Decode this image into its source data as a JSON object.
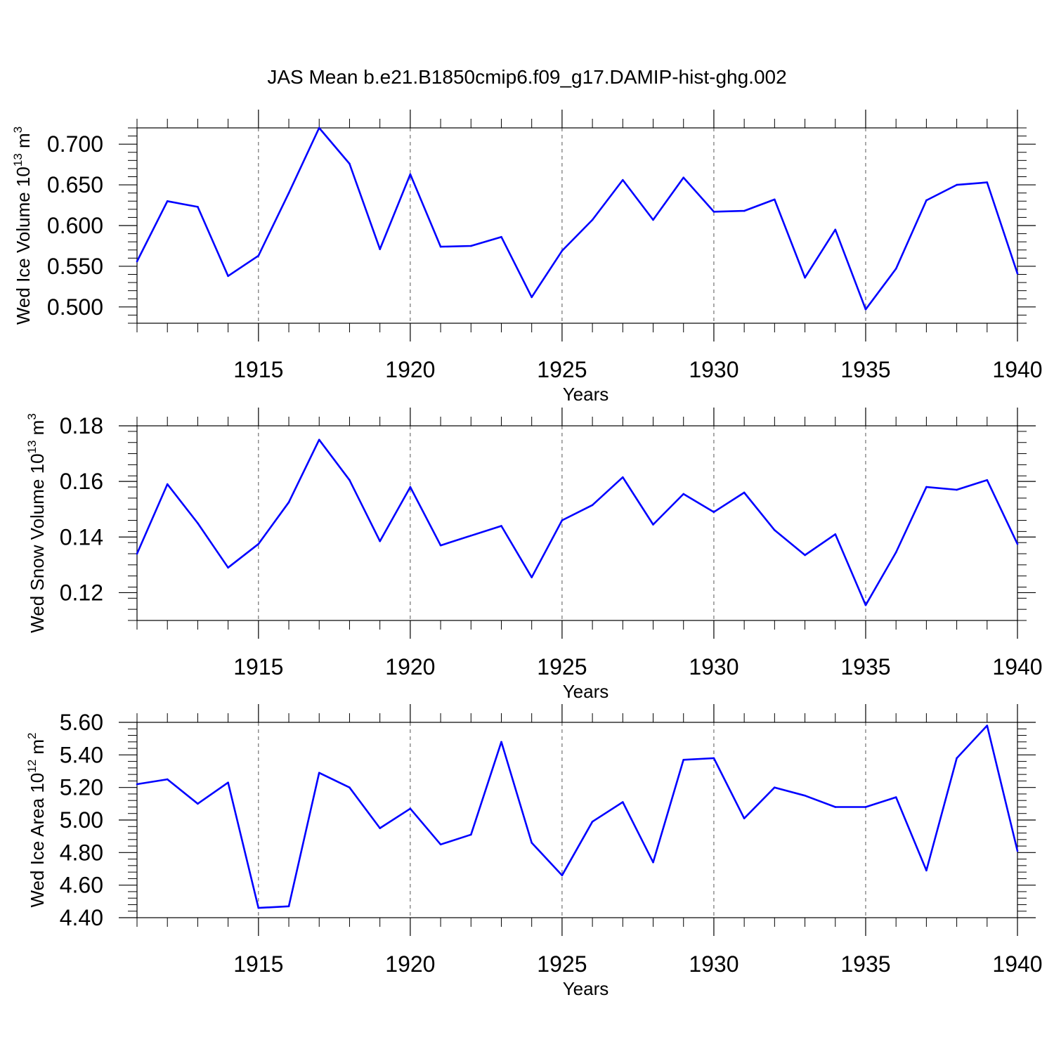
{
  "chart_data": {
    "type": "line",
    "title": "JAS Mean b.e21.B1850cmip6.f09_g17.DAMIP-hist-ghg.002",
    "line_color": "#0000ff",
    "x": [
      1911,
      1912,
      1913,
      1914,
      1915,
      1916,
      1917,
      1918,
      1919,
      1920,
      1921,
      1922,
      1923,
      1924,
      1925,
      1926,
      1927,
      1928,
      1929,
      1930,
      1931,
      1932,
      1933,
      1934,
      1935,
      1936,
      1937,
      1938,
      1939,
      1940
    ],
    "xlim": [
      1911,
      1940
    ],
    "xticks": [
      1915,
      1920,
      1925,
      1930,
      1935,
      1940
    ],
    "xlabel": "Years",
    "grid": "dashed vertical at major x ticks",
    "panels": [
      {
        "ylabel_main": "Wed Ice Volume 10",
        "ylabel_exp": "13",
        "ylabel_unit": " m",
        "ylabel_unit_exp": "3",
        "ylim": [
          0.48,
          0.72
        ],
        "yticks": [
          0.5,
          0.55,
          0.6,
          0.65,
          0.7
        ],
        "ytick_labels": [
          "0.500",
          "0.550",
          "0.600",
          "0.650",
          "0.700"
        ],
        "yminor_step": 0.01,
        "values": [
          0.556,
          0.63,
          0.623,
          0.538,
          0.563,
          0.64,
          0.72,
          0.676,
          0.571,
          0.663,
          0.574,
          0.575,
          0.586,
          0.512,
          0.569,
          0.607,
          0.656,
          0.607,
          0.659,
          0.617,
          0.618,
          0.632,
          0.536,
          0.595,
          0.497,
          0.547,
          0.631,
          0.65,
          0.653,
          0.541
        ]
      },
      {
        "ylabel_main": "Wed Snow Volume 10",
        "ylabel_exp": "13",
        "ylabel_unit": " m",
        "ylabel_unit_exp": "3",
        "ylim": [
          0.11,
          0.18
        ],
        "yticks": [
          0.12,
          0.14,
          0.16,
          0.18
        ],
        "ytick_labels": [
          "0.12",
          "0.14",
          "0.16",
          "0.18"
        ],
        "yminor_step": 0.004,
        "values": [
          0.134,
          0.159,
          0.145,
          0.129,
          0.1375,
          0.1525,
          0.175,
          0.1605,
          0.1385,
          0.158,
          0.137,
          0.1405,
          0.144,
          0.1255,
          0.146,
          0.1515,
          0.1615,
          0.1445,
          0.1555,
          0.149,
          0.156,
          0.1425,
          0.1335,
          0.141,
          0.1155,
          0.1345,
          0.158,
          0.157,
          0.1605,
          0.1375
        ]
      },
      {
        "ylabel_main": "Wed Ice Area 10",
        "ylabel_exp": "12",
        "ylabel_unit": " m",
        "ylabel_unit_exp": "2",
        "ylim": [
          4.4,
          5.6
        ],
        "yticks": [
          4.4,
          4.6,
          4.8,
          5.0,
          5.2,
          5.4,
          5.6
        ],
        "ytick_labels": [
          "4.40",
          "4.60",
          "4.80",
          "5.00",
          "5.20",
          "5.40",
          "5.60"
        ],
        "yminor_step": 0.04,
        "values": [
          5.22,
          5.25,
          5.1,
          5.23,
          4.46,
          4.47,
          5.29,
          5.2,
          4.95,
          5.07,
          4.85,
          4.91,
          5.48,
          4.86,
          4.66,
          4.99,
          5.11,
          4.74,
          5.37,
          5.38,
          5.01,
          5.2,
          5.15,
          5.08,
          5.08,
          5.14,
          4.69,
          5.38,
          5.58,
          4.81
        ]
      }
    ]
  }
}
